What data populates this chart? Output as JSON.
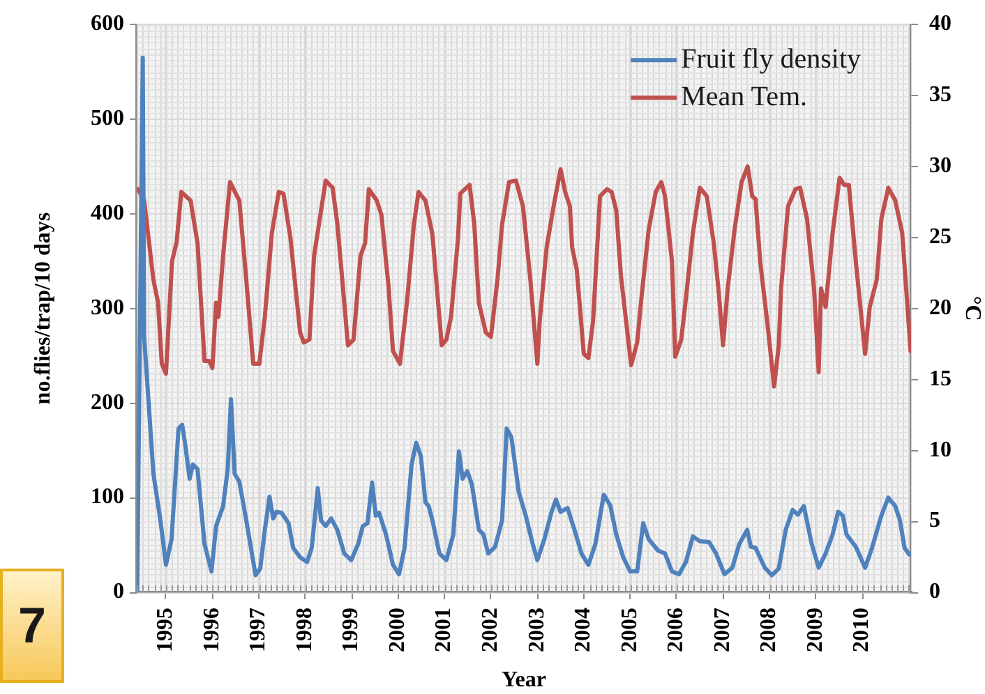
{
  "chart_data": {
    "type": "line",
    "xlabel": "Year",
    "ylabel": "no.flies/trap/10 days",
    "y2label": "°C",
    "annotations": [
      "7"
    ],
    "xlim": [
      1994.37,
      2011.05
    ],
    "xticks": [
      1995,
      1996,
      1997,
      1998,
      1999,
      2000,
      2001,
      2002,
      2003,
      2004,
      2005,
      2006,
      2007,
      2008,
      2009,
      2010
    ],
    "ylim": [
      0,
      600
    ],
    "yticks": [
      0,
      100,
      200,
      300,
      400,
      500,
      600
    ],
    "y2lim": [
      0,
      40
    ],
    "y2ticks": [
      0,
      5,
      10,
      15,
      20,
      25,
      30,
      35,
      40
    ],
    "grid": true,
    "legend": "top right",
    "marker": "none",
    "line_style": "solid",
    "series": [
      {
        "name": "Fruit fly density",
        "color": "#4f81bd",
        "x": [
          1994.38,
          1994.5,
          1994.53,
          1994.73,
          1994.88,
          1995.0,
          1995.12,
          1995.27,
          1995.35,
          1995.42,
          1995.51,
          1995.58,
          1995.68,
          1995.83,
          1995.98,
          1996.08,
          1996.23,
          1996.33,
          1996.4,
          1996.48,
          1996.58,
          1996.73,
          1996.93,
          1997.03,
          1997.13,
          1997.23,
          1997.31,
          1997.38,
          1997.49,
          1997.64,
          1997.74,
          1997.89,
          1998.04,
          1998.14,
          1998.27,
          1998.34,
          1998.44,
          1998.56,
          1998.69,
          1998.84,
          1998.99,
          1999.14,
          1999.24,
          1999.34,
          1999.44,
          1999.52,
          1999.59,
          1999.74,
          1999.89,
          2000.02,
          2000.14,
          2000.29,
          2000.39,
          2000.49,
          2000.59,
          2000.66,
          2000.74,
          2000.89,
          2001.04,
          2001.19,
          2001.31,
          2001.39,
          2001.49,
          2001.59,
          2001.74,
          2001.84,
          2001.94,
          2002.09,
          2002.24,
          2002.34,
          2002.44,
          2002.6,
          2002.75,
          2002.9,
          2003.0,
          2003.15,
          2003.3,
          2003.4,
          2003.5,
          2003.65,
          2003.8,
          2003.95,
          2004.1,
          2004.25,
          2004.43,
          2004.57,
          2004.7,
          2004.85,
          2005.0,
          2005.15,
          2005.28,
          2005.4,
          2005.6,
          2005.75,
          2005.9,
          2006.05,
          2006.2,
          2006.35,
          2006.5,
          2006.7,
          2006.85,
          2007.03,
          2007.2,
          2007.35,
          2007.52,
          2007.6,
          2007.7,
          2007.9,
          2008.05,
          2008.2,
          2008.35,
          2008.5,
          2008.61,
          2008.74,
          2008.91,
          2009.06,
          2009.21,
          2009.36,
          2009.48,
          2009.58,
          2009.66,
          2009.86,
          2010.06,
          2010.21,
          2010.41,
          2010.56,
          2010.71,
          2010.81,
          2010.91,
          2011.01
        ],
        "values": [
          0,
          565,
          270,
          125,
          76,
          29,
          56,
          173,
          177,
          154,
          120,
          135,
          130,
          51,
          22,
          70,
          91,
          130,
          204,
          125,
          117,
          76,
          18,
          25,
          66,
          101,
          78,
          85,
          84,
          73,
          47,
          37,
          32,
          47,
          110,
          76,
          70,
          78,
          66,
          41,
          34,
          51,
          70,
          73,
          116,
          81,
          84,
          61,
          29,
          19,
          47,
          135,
          158,
          144,
          95,
          91,
          76,
          41,
          34,
          61,
          149,
          120,
          128,
          114,
          66,
          61,
          41,
          48,
          76,
          173,
          164,
          106,
          81,
          51,
          34,
          56,
          84,
          98,
          85,
          89,
          66,
          41,
          29,
          51,
          103,
          92,
          61,
          37,
          22,
          22,
          73,
          56,
          44,
          41,
          22,
          19,
          32,
          59,
          54,
          53,
          41,
          19,
          26,
          51,
          66,
          48,
          47,
          26,
          18,
          25,
          66,
          87,
          82,
          91,
          51,
          26,
          41,
          61,
          85,
          81,
          61,
          48,
          26,
          47,
          81,
          100,
          91,
          76,
          47,
          40
        ]
      },
      {
        "name": "Mean Tem.",
        "color": "#c0504d",
        "axis": "y2",
        "x": [
          1994.4,
          1994.53,
          1994.73,
          1994.83,
          1994.91,
          1995.0,
          1995.13,
          1995.23,
          1995.33,
          1995.53,
          1995.68,
          1995.83,
          1995.93,
          1996.0,
          1996.08,
          1996.13,
          1996.23,
          1996.38,
          1996.58,
          1996.73,
          1996.88,
          1997.01,
          1997.13,
          1997.28,
          1997.43,
          1997.53,
          1997.68,
          1997.89,
          1997.97,
          1998.09,
          1998.19,
          1998.44,
          1998.59,
          1998.69,
          1998.79,
          1998.92,
          1999.04,
          1999.19,
          1999.29,
          1999.37,
          1999.54,
          1999.64,
          1999.79,
          1999.89,
          2000.04,
          2000.19,
          2000.34,
          2000.44,
          2000.59,
          2000.74,
          2000.94,
          2001.04,
          2001.14,
          2001.29,
          2001.34,
          2001.54,
          2001.64,
          2001.74,
          2001.89,
          2002.0,
          2002.14,
          2002.24,
          2002.39,
          2002.54,
          2002.69,
          2002.85,
          2003.0,
          2003.05,
          2003.2,
          2003.35,
          2003.5,
          2003.6,
          2003.7,
          2003.75,
          2003.85,
          2004.0,
          2004.1,
          2004.2,
          2004.35,
          2004.5,
          2004.6,
          2004.7,
          2004.8,
          2005.02,
          2005.15,
          2005.25,
          2005.4,
          2005.55,
          2005.67,
          2005.75,
          2005.9,
          2005.97,
          2006.1,
          2006.2,
          2006.35,
          2006.5,
          2006.65,
          2006.8,
          2006.9,
          2007.0,
          2007.1,
          2007.25,
          2007.4,
          2007.53,
          2007.63,
          2007.7,
          2007.8,
          2007.95,
          2008.1,
          2008.2,
          2008.25,
          2008.4,
          2008.56,
          2008.66,
          2008.81,
          2008.96,
          2009.06,
          2009.11,
          2009.21,
          2009.36,
          2009.51,
          2009.61,
          2009.71,
          2009.86,
          2010.06,
          2010.16,
          2010.31,
          2010.41,
          2010.56,
          2010.71,
          2010.86,
          2010.96,
          2011.04
        ],
        "values": [
          28.4,
          27.6,
          22.0,
          20.4,
          16.1,
          15.4,
          23.3,
          24.7,
          28.2,
          27.6,
          24.6,
          16.3,
          16.3,
          15.8,
          20.4,
          19.4,
          23.7,
          28.9,
          27.6,
          22.0,
          16.1,
          16.1,
          19.4,
          25.3,
          28.2,
          28.1,
          25.0,
          18.3,
          17.6,
          17.8,
          23.7,
          29.0,
          28.5,
          26.0,
          22.3,
          17.4,
          17.8,
          23.7,
          24.6,
          28.4,
          27.6,
          26.6,
          21.7,
          17.0,
          16.1,
          20.4,
          25.9,
          28.2,
          27.6,
          25.2,
          17.4,
          17.8,
          19.4,
          24.9,
          28.1,
          28.7,
          26.0,
          20.4,
          18.3,
          18.0,
          22.0,
          25.9,
          28.9,
          29.0,
          27.2,
          22.0,
          16.1,
          19.1,
          24.3,
          27.2,
          29.8,
          28.2,
          27.2,
          24.3,
          22.7,
          16.8,
          16.5,
          19.1,
          27.9,
          28.4,
          28.2,
          26.9,
          22.3,
          16.0,
          17.6,
          21.0,
          25.6,
          28.2,
          28.9,
          27.9,
          23.3,
          16.6,
          17.8,
          20.7,
          25.3,
          28.5,
          27.9,
          24.6,
          21.4,
          17.4,
          21.4,
          25.6,
          28.9,
          30.0,
          27.9,
          27.7,
          23.3,
          19.1,
          14.5,
          17.4,
          21.4,
          27.2,
          28.4,
          28.5,
          26.3,
          21.4,
          15.5,
          21.4,
          20.1,
          25.3,
          29.2,
          28.7,
          28.7,
          23.3,
          16.8,
          20.1,
          22.0,
          26.3,
          28.5,
          27.6,
          25.3,
          20.7,
          17.0
        ]
      }
    ]
  }
}
